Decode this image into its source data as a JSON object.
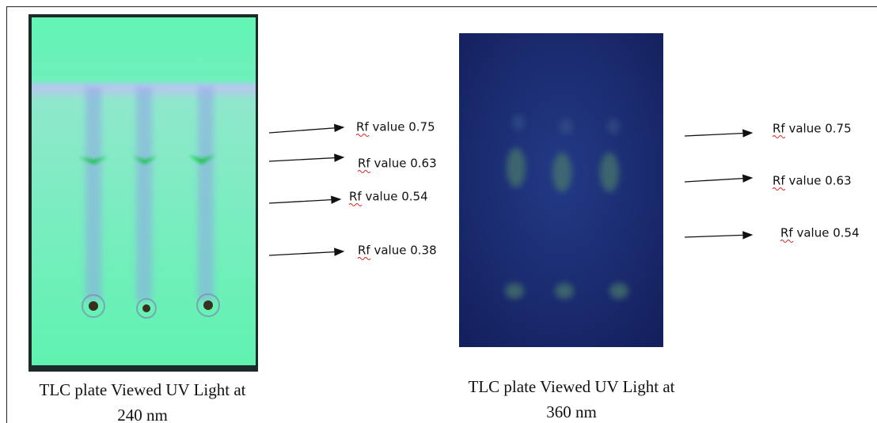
{
  "panels": [
    {
      "labels": [
        "Rf value 0.75",
        "Rf value 0.63",
        "Rf value 0.54",
        "Rf value 0.38"
      ],
      "caption": [
        "TLC plate Viewed UV Light at",
        "240 nm"
      ]
    },
    {
      "labels": [
        "Rf value 0.75",
        "Rf value 0.63",
        "Rf value 0.54"
      ],
      "caption": [
        "TLC plate Viewed UV Light at",
        "360 nm"
      ]
    }
  ]
}
